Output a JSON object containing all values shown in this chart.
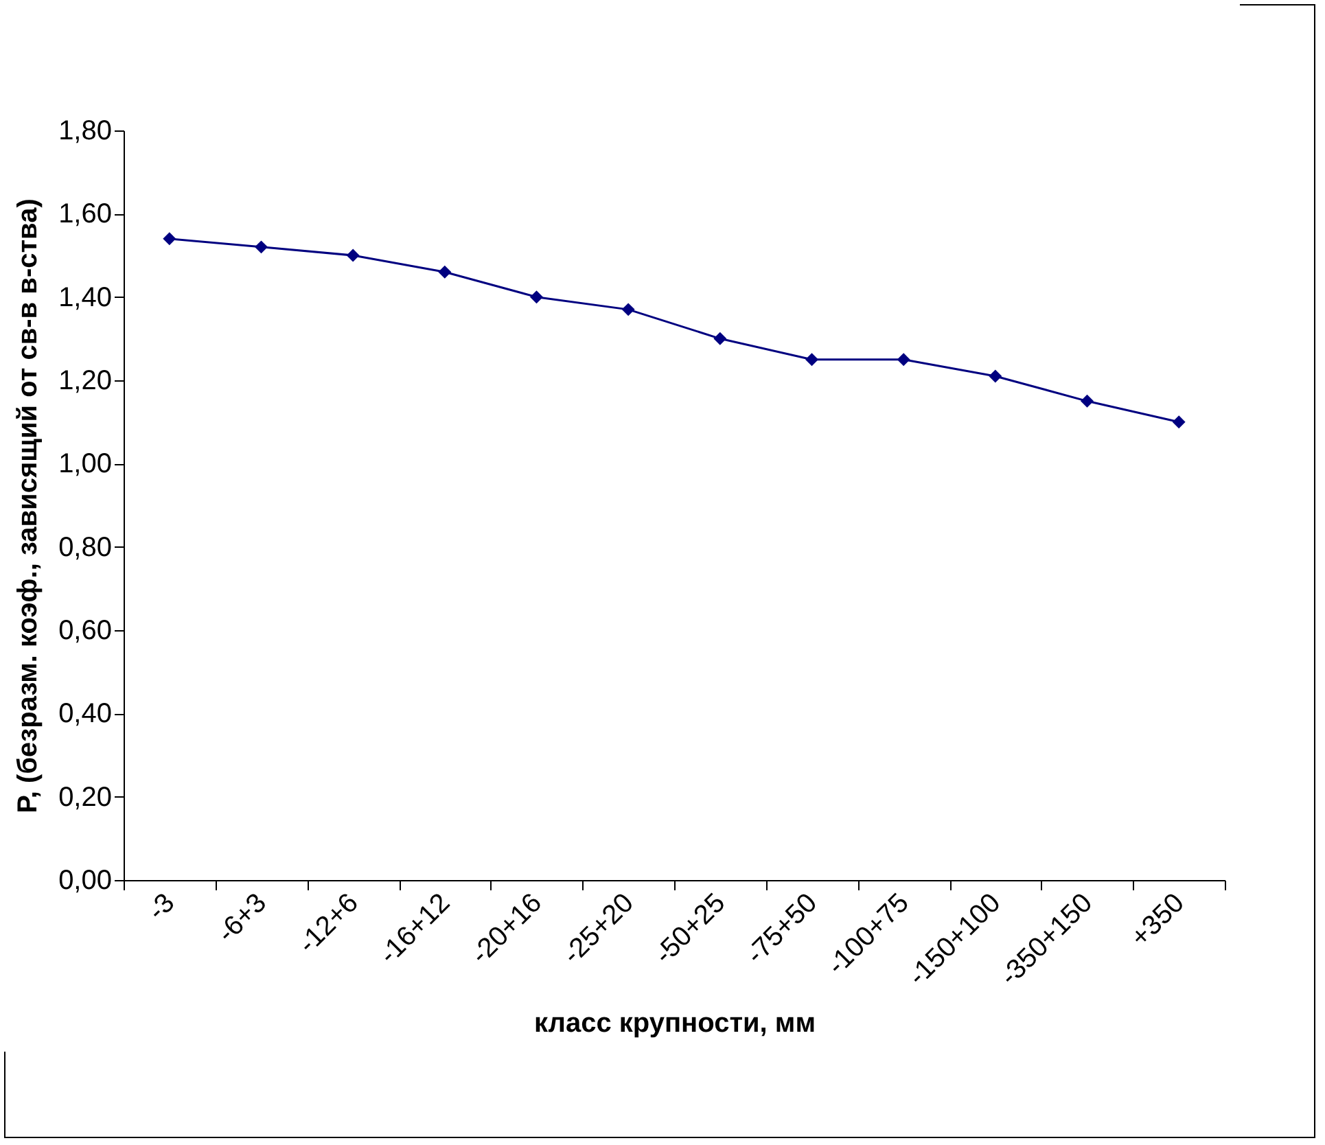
{
  "chart_data": {
    "type": "line",
    "xlabel": "класс крупности, мм",
    "ylabel": "P, (безразм. коэф., зависящий от св-в в-ства)",
    "categories": [
      "-3",
      "-6+3",
      "-12+6",
      "-16+12",
      "-20+16",
      "-25+20",
      "-50+25",
      "-75+50",
      "-100+75",
      "-150+100",
      "-350+150",
      "+350"
    ],
    "series": [
      {
        "color": "#000080",
        "values": [
          1.54,
          1.52,
          1.5,
          1.46,
          1.4,
          1.37,
          1.3,
          1.25,
          1.25,
          1.21,
          1.15,
          1.1
        ]
      }
    ],
    "ylim": [
      0,
      1.8
    ],
    "yticks": [
      {
        "value": 0,
        "label": "0,00"
      },
      {
        "value": 0.2,
        "label": "0,20"
      },
      {
        "value": 0.4,
        "label": "0,40"
      },
      {
        "value": 0.6,
        "label": "0,60"
      },
      {
        "value": 0.8,
        "label": "0,80"
      },
      {
        "value": 1.0,
        "label": "1,00"
      },
      {
        "value": 1.2,
        "label": "1,20"
      },
      {
        "value": 1.4,
        "label": "1,40"
      },
      {
        "value": 1.6,
        "label": "1,60"
      },
      {
        "value": 1.8,
        "label": "1,80"
      }
    ],
    "grid": false,
    "legend": false,
    "marker": "diamond",
    "line_style": "solid"
  }
}
